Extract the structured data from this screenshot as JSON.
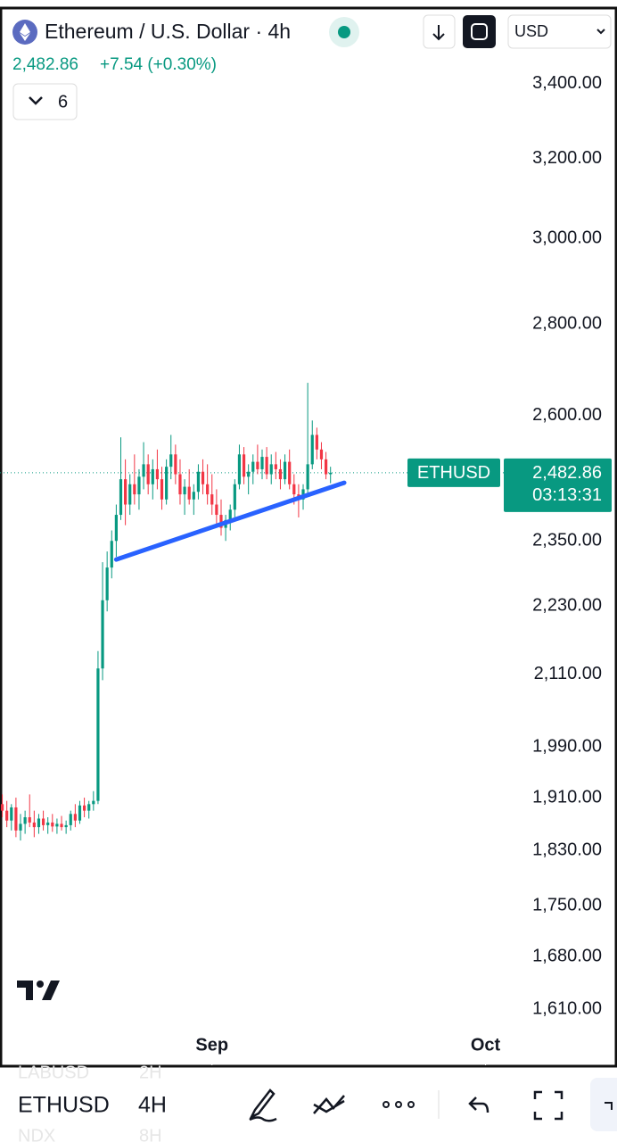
{
  "header": {
    "price": "2,482.86",
    "change": "+7.54 (+0.30%)",
    "indicator_count": "6",
    "currency": "USD"
  },
  "chart_data": {
    "type": "candlestick",
    "title": "Ethereum / U.S. Dollar · 4h",
    "symbol": "ETHUSD",
    "countdown": "03:13:31",
    "last_label": "2,482.86",
    "up_color": "#089981",
    "down_color": "#f23645",
    "log_scale": true,
    "grid": false,
    "categories": [
      null,
      null,
      null,
      null,
      null,
      null,
      null,
      null,
      null,
      null,
      null,
      null,
      null,
      null,
      null,
      null,
      null,
      null,
      null,
      null,
      null,
      null,
      null,
      null,
      null,
      null,
      null,
      null,
      null,
      null,
      null,
      null,
      null,
      null,
      null,
      null,
      null,
      null,
      null,
      null,
      null,
      null,
      null,
      null,
      null,
      null,
      null,
      null,
      null,
      null,
      null,
      null,
      null,
      null,
      null,
      null,
      null,
      null,
      null,
      null,
      null,
      null,
      null,
      null,
      null,
      null,
      null,
      null,
      null,
      null,
      null,
      null,
      null
    ],
    "open": [
      1900,
      1890,
      1875,
      1895,
      1860,
      1870,
      1880,
      1872,
      1865,
      1878,
      1868,
      1872,
      1866,
      1870,
      1865,
      1868,
      1885,
      1875,
      1898,
      1890,
      1900,
      1905,
      2120,
      2240,
      2300,
      2350,
      2400,
      2470,
      2420,
      2460,
      2440,
      2475,
      2500,
      2460,
      2490,
      2470,
      2430,
      2495,
      2520,
      2480,
      2440,
      2455,
      2430,
      2445,
      2485,
      2460,
      2440,
      2420,
      2400,
      2375,
      2390,
      2410,
      2460,
      2520,
      2475,
      2485,
      2505,
      2490,
      2515,
      2480,
      2500,
      2490,
      2470,
      2505,
      2460,
      2440,
      2430,
      2450,
      2500,
      2560,
      2530,
      2510,
      2480
    ],
    "high": [
      1915,
      1905,
      1900,
      1910,
      1885,
      1890,
      1915,
      1890,
      1885,
      1890,
      1880,
      1885,
      1878,
      1882,
      1875,
      1890,
      1900,
      1905,
      1910,
      1905,
      1920,
      2150,
      2310,
      2330,
      2370,
      2420,
      2555,
      2510,
      2480,
      2520,
      2490,
      2545,
      2520,
      2510,
      2530,
      2495,
      2510,
      2560,
      2540,
      2510,
      2470,
      2490,
      2460,
      2500,
      2510,
      2500,
      2480,
      2450,
      2430,
      2400,
      2420,
      2470,
      2540,
      2535,
      2500,
      2520,
      2540,
      2530,
      2535,
      2520,
      2525,
      2510,
      2520,
      2530,
      2480,
      2460,
      2460,
      2670,
      2590,
      2575,
      2545,
      2525,
      2495
    ],
    "low": [
      1880,
      1865,
      1860,
      1850,
      1845,
      1855,
      1865,
      1850,
      1855,
      1860,
      1855,
      1858,
      1855,
      1860,
      1855,
      1860,
      1865,
      1870,
      1880,
      1878,
      1890,
      1900,
      2100,
      2220,
      2280,
      2320,
      2390,
      2380,
      2400,
      2420,
      2410,
      2450,
      2440,
      2430,
      2450,
      2410,
      2420,
      2470,
      2460,
      2420,
      2400,
      2420,
      2400,
      2430,
      2440,
      2420,
      2400,
      2380,
      2360,
      2350,
      2370,
      2395,
      2450,
      2460,
      2440,
      2460,
      2480,
      2470,
      2470,
      2460,
      2470,
      2450,
      2460,
      2450,
      2420,
      2395,
      2410,
      2440,
      2490,
      2510,
      2490,
      2470,
      2462
    ],
    "close": [
      1890,
      1875,
      1895,
      1860,
      1870,
      1880,
      1872,
      1865,
      1878,
      1868,
      1872,
      1866,
      1870,
      1865,
      1868,
      1885,
      1875,
      1898,
      1890,
      1900,
      1905,
      2120,
      2240,
      2300,
      2350,
      2400,
      2470,
      2420,
      2460,
      2440,
      2475,
      2500,
      2460,
      2490,
      2470,
      2430,
      2495,
      2520,
      2480,
      2440,
      2455,
      2430,
      2445,
      2485,
      2460,
      2440,
      2420,
      2400,
      2375,
      2390,
      2410,
      2460,
      2520,
      2475,
      2485,
      2505,
      2490,
      2515,
      2480,
      2500,
      2490,
      2470,
      2505,
      2460,
      2440,
      2430,
      2450,
      2500,
      2560,
      2530,
      2510,
      2480,
      2482.86
    ],
    "trendline": {
      "x": [
        25,
        75
      ],
      "values": [
        2315,
        2463
      ],
      "color": "#2962ff"
    },
    "xlim": [
      -0.5,
      110
    ],
    "xticks": [
      {
        "value": 46,
        "label": "Sep"
      },
      {
        "value": 106,
        "label": "Oct"
      }
    ],
    "ylim": [
      1541,
      3611
    ],
    "yticks": [
      {
        "value": 1610,
        "label": "1,610.00"
      },
      {
        "value": 1680,
        "label": "1,680.00"
      },
      {
        "value": 1750,
        "label": "1,750.00"
      },
      {
        "value": 1830,
        "label": "1,830.00"
      },
      {
        "value": 1910,
        "label": "1,910.00"
      },
      {
        "value": 1990,
        "label": "1,990.00"
      },
      {
        "value": 2110,
        "label": "2,110.00"
      },
      {
        "value": 2230,
        "label": "2,230.00"
      },
      {
        "value": 2350,
        "label": "2,350.00"
      },
      {
        "value": 2600,
        "label": "2,600.00"
      },
      {
        "value": 2800,
        "label": "2,800.00"
      },
      {
        "value": 3000,
        "label": "3,000.00"
      },
      {
        "value": 3200,
        "label": "3,200.00"
      },
      {
        "value": 3400,
        "label": "3,400.00"
      }
    ]
  },
  "bottom_bar": {
    "prev_symbol": "LABUSD",
    "prev_interval": "2H",
    "symbol": "ETHUSD",
    "interval": "4H",
    "next_symbol": "NDX",
    "next_interval": "8H"
  }
}
